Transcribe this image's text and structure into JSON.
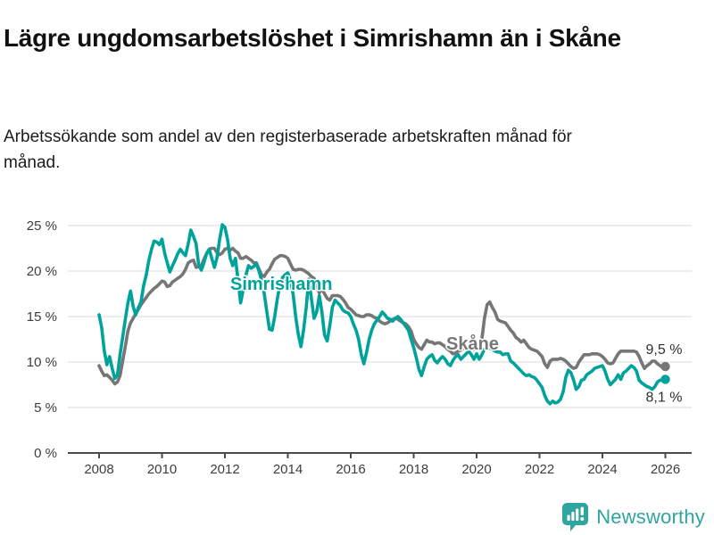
{
  "header": {
    "title": "Lägre ungdomsarbetslöshet i Simrishamn än i Skåne",
    "subtitle": "Arbetssökande som andel av den registerbaserade arbetskraften månad för månad."
  },
  "chart_data": {
    "type": "line",
    "x_start": "2008-01",
    "x_interval": "monthly",
    "x_ticks": [
      2008,
      2010,
      2012,
      2014,
      2016,
      2018,
      2020,
      2022,
      2024,
      2026
    ],
    "y_ticks": [
      0,
      5,
      10,
      15,
      20,
      25
    ],
    "y_tick_suffix": " %",
    "ylim": [
      0,
      25.5
    ],
    "grid": true,
    "legend_position": "inline-labels-on-lines",
    "series": [
      {
        "name": "Skåne",
        "color": "#767676",
        "end_label": "9,5 %",
        "end_value": 9.5,
        "values": [
          9.6,
          9.0,
          8.5,
          8.6,
          8.3,
          8.0,
          7.6,
          7.8,
          8.5,
          10.1,
          11.7,
          13.4,
          14.3,
          14.8,
          15.3,
          15.8,
          16.3,
          16.7,
          17.1,
          17.5,
          17.8,
          18.1,
          18.3,
          18.6,
          18.9,
          18.8,
          18.3,
          18.4,
          18.8,
          19.0,
          19.2,
          19.4,
          19.7,
          20.2,
          20.9,
          21.1,
          21.2,
          20.4,
          20.5,
          20.6,
          21.3,
          21.9,
          22.4,
          22.5,
          22.5,
          22.0,
          21.8,
          22.0,
          22.4,
          22.5,
          22.3,
          22.5,
          22.2,
          22.0,
          21.4,
          21.4,
          21.6,
          21.4,
          21.2,
          20.9,
          20.9,
          20.2,
          19.6,
          19.4,
          19.9,
          20.2,
          20.8,
          21.3,
          21.5,
          21.7,
          21.7,
          21.6,
          21.4,
          20.8,
          20.2,
          20.1,
          20.2,
          20.2,
          20.1,
          19.9,
          19.7,
          19.4,
          19.2,
          18.4,
          17.6,
          18.1,
          17.5,
          17.0,
          16.8,
          17.3,
          17.3,
          17.3,
          17.2,
          16.9,
          16.5,
          16.0,
          15.8,
          15.5,
          15.2,
          15.1,
          15.0,
          15.0,
          15.2,
          15.2,
          15.1,
          14.9,
          14.8,
          14.5,
          14.3,
          14.2,
          14.3,
          14.5,
          14.7,
          14.8,
          14.7,
          14.5,
          14.3,
          14.2,
          13.9,
          13.4,
          12.5,
          12.0,
          11.6,
          11.4,
          11.9,
          12.4,
          12.2,
          12.2,
          12.0,
          12.1,
          12.1,
          11.9,
          11.7,
          11.4,
          11.2,
          10.9,
          11.0,
          11.2,
          11.3,
          11.5,
          11.6,
          11.6,
          11.5,
          11.4,
          11.6,
          11.8,
          12.5,
          14.8,
          16.3,
          16.6,
          16.0,
          15.5,
          14.7,
          14.5,
          14.4,
          14.3,
          13.9,
          13.5,
          13.2,
          12.7,
          12.5,
          12.2,
          12.4,
          12.0,
          11.6,
          11.4,
          11.3,
          11.2,
          10.9,
          10.6,
          9.8,
          9.4,
          10.1,
          10.3,
          10.3,
          10.3,
          10.4,
          10.3,
          10.1,
          9.8,
          9.5,
          9.3,
          9.4,
          10.0,
          10.4,
          10.8,
          10.8,
          10.8,
          10.9,
          10.9,
          10.9,
          10.8,
          10.6,
          10.3,
          9.9,
          9.8,
          9.9,
          10.4,
          10.9,
          11.2,
          11.2,
          11.2,
          11.2,
          11.2,
          11.2,
          11.1,
          10.6,
          9.9,
          9.3,
          9.6,
          9.8,
          10.1,
          10.1,
          9.8,
          9.6,
          9.4,
          9.5
        ]
      },
      {
        "name": "Simrishamn",
        "color": "#00a39b",
        "end_label": "8,1 %",
        "end_value": 8.1,
        "values": [
          15.2,
          13.8,
          11.2,
          9.7,
          10.6,
          9.3,
          8.2,
          8.6,
          10.8,
          12.7,
          14.7,
          16.5,
          17.8,
          16.1,
          15.2,
          16.0,
          16.6,
          18.4,
          19.6,
          21.2,
          22.4,
          23.3,
          23.2,
          22.9,
          23.5,
          22.0,
          20.9,
          19.9,
          20.6,
          21.2,
          21.9,
          22.4,
          22.0,
          21.7,
          23.0,
          24.5,
          23.8,
          23.0,
          20.7,
          20.1,
          20.9,
          21.9,
          22.4,
          21.4,
          20.4,
          21.5,
          23.5,
          25.1,
          24.8,
          23.5,
          21.4,
          20.6,
          21.4,
          19.0,
          16.5,
          18.0,
          19.5,
          20.6,
          20.3,
          20.5,
          20.8,
          20.0,
          19.0,
          17.5,
          15.5,
          13.6,
          13.5,
          15.0,
          17.0,
          18.5,
          19.3,
          19.6,
          19.8,
          19.0,
          17.5,
          15.0,
          13.0,
          11.7,
          13.5,
          16.0,
          19.1,
          17.0,
          14.8,
          15.5,
          17.3,
          15.5,
          13.0,
          12.3,
          14.0,
          16.0,
          16.8,
          16.5,
          16.2,
          15.7,
          15.5,
          15.4,
          15.0,
          14.2,
          13.5,
          12.5,
          10.8,
          9.8,
          11.0,
          12.5,
          13.5,
          14.2,
          14.6,
          15.0,
          15.5,
          15.2,
          14.8,
          14.7,
          14.5,
          14.8,
          15.0,
          14.7,
          14.3,
          13.9,
          13.5,
          12.5,
          11.6,
          10.5,
          9.2,
          8.5,
          9.5,
          10.3,
          10.6,
          10.8,
          10.2,
          9.9,
          10.3,
          10.6,
          10.3,
          9.8,
          9.6,
          10.2,
          10.6,
          10.8,
          10.3,
          10.6,
          10.9,
          11.2,
          10.8,
          10.3,
          10.9,
          10.3,
          10.8,
          11.4,
          11.6,
          11.5,
          11.4,
          11.2,
          11.1,
          11.1,
          10.8,
          10.9,
          10.9,
          10.1,
          9.9,
          9.6,
          9.3,
          9.0,
          8.7,
          8.5,
          8.6,
          8.4,
          8.3,
          8.0,
          7.6,
          7.2,
          6.3,
          5.7,
          5.4,
          5.7,
          5.5,
          5.6,
          5.9,
          6.7,
          8.3,
          9.1,
          8.8,
          8.0,
          7.0,
          7.3,
          8.0,
          8.1,
          8.6,
          8.8,
          9.0,
          9.3,
          9.4,
          9.5,
          9.6,
          9.0,
          8.1,
          7.5,
          7.8,
          8.1,
          8.6,
          8.1,
          8.8,
          9.0,
          9.3,
          9.6,
          9.4,
          9.0,
          8.0,
          7.7,
          7.5,
          7.3,
          7.2,
          7.0,
          7.3,
          7.8,
          8.0,
          8.1,
          8.1
        ]
      }
    ]
  },
  "footer": {
    "brand": "Newsworthy",
    "brand_color": "#2fa5a0",
    "icon": "bar-chart-speech-bubble-icon"
  }
}
